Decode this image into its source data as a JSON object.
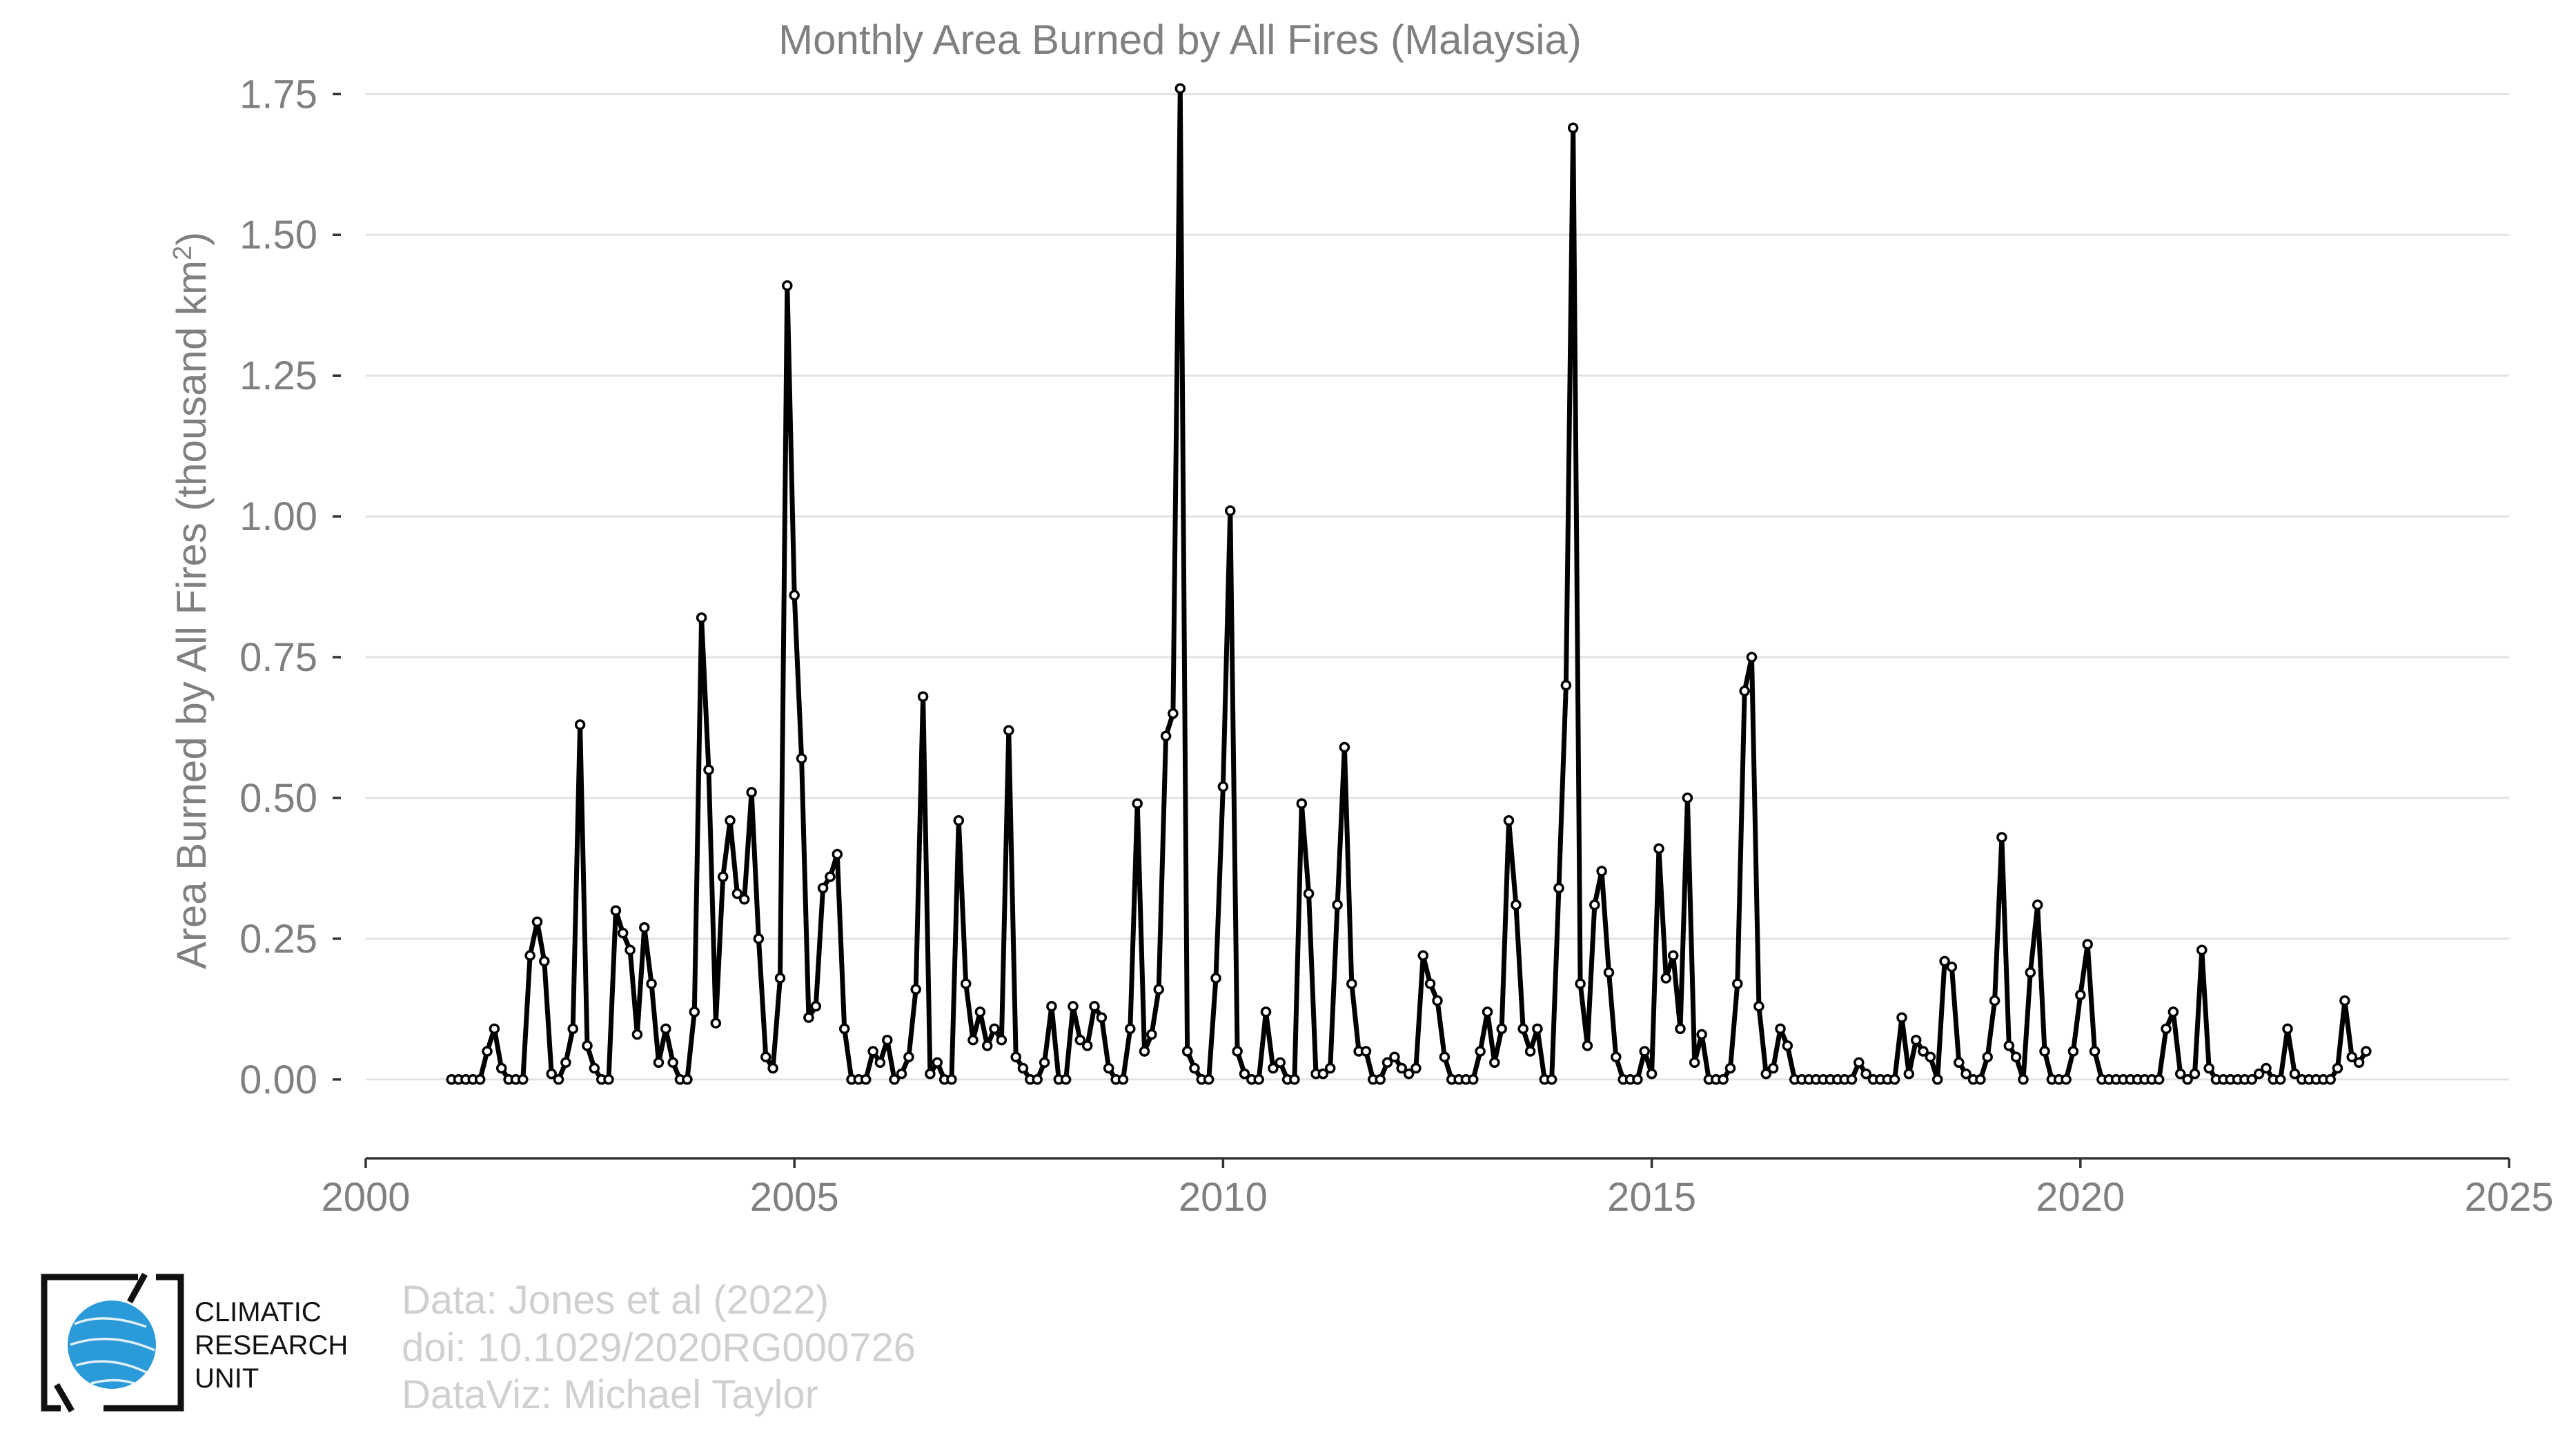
{
  "chart_data": {
    "type": "line",
    "title": "Monthly Area Burned by All Fires (Malaysia)",
    "xlabel": "",
    "ylabel": "Area Burned by All Fires (thousand km",
    "ylabel_sup": "2",
    "ylabel_tail": ")",
    "xlim": [
      2000,
      2025
    ],
    "ylim": [
      -0.14,
      1.77
    ],
    "x_ticks": [
      2000,
      2005,
      2010,
      2015,
      2020,
      2025
    ],
    "x_tick_labels": [
      "2000",
      "2005",
      "2010",
      "2015",
      "2020",
      "2025"
    ],
    "y_ticks": [
      0,
      0.25,
      0.5,
      0.75,
      1.0,
      1.25,
      1.5,
      1.75
    ],
    "y_tick_labels": [
      "0.00",
      "0.25",
      "0.50",
      "0.75",
      "1.00",
      "1.25",
      "1.50",
      "1.75"
    ],
    "grid": "horizontal",
    "start_year": 2001,
    "frequency": "monthly",
    "series": [
      {
        "color": "#000000",
        "values": [
          0,
          0,
          0,
          0,
          0,
          0.05,
          0.09,
          0.02,
          0,
          0,
          0,
          0.22,
          0.28,
          0.21,
          0.01,
          0,
          0.03,
          0.09,
          0.63,
          0.06,
          0.02,
          0,
          0,
          0.3,
          0.26,
          0.23,
          0.08,
          0.27,
          0.17,
          0.03,
          0.09,
          0.03,
          0,
          0,
          0.12,
          0.82,
          0.55,
          0.1,
          0.36,
          0.46,
          0.33,
          0.32,
          0.51,
          0.25,
          0.04,
          0.02,
          0.18,
          1.41,
          0.86,
          0.57,
          0.11,
          0.13,
          0.34,
          0.36,
          0.4,
          0.09,
          0,
          0,
          0,
          0.05,
          0.03,
          0.07,
          0,
          0.01,
          0.04,
          0.16,
          0.68,
          0.01,
          0.03,
          0,
          0,
          0.46,
          0.17,
          0.07,
          0.12,
          0.06,
          0.09,
          0.07,
          0.62,
          0.04,
          0.02,
          0,
          0,
          0.03,
          0.13,
          0,
          0,
          0.13,
          0.07,
          0.06,
          0.13,
          0.11,
          0.02,
          0,
          0,
          0.09,
          0.49,
          0.05,
          0.08,
          0.16,
          0.61,
          0.65,
          1.76,
          0.05,
          0.02,
          0,
          0,
          0.18,
          0.52,
          1.01,
          0.05,
          0.01,
          0,
          0,
          0.12,
          0.02,
          0.03,
          0,
          0,
          0.49,
          0.33,
          0.01,
          0.01,
          0.02,
          0.31,
          0.59,
          0.17,
          0.05,
          0.05,
          0,
          0,
          0.03,
          0.04,
          0.02,
          0.01,
          0.02,
          0.22,
          0.17,
          0.14,
          0.04,
          0,
          0,
          0,
          0,
          0.05,
          0.12,
          0.03,
          0.09,
          0.46,
          0.31,
          0.09,
          0.05,
          0.09,
          0,
          0,
          0.34,
          0.7,
          1.69,
          0.17,
          0.06,
          0.31,
          0.37,
          0.19,
          0.04,
          0,
          0,
          0,
          0.05,
          0.01,
          0.41,
          0.18,
          0.22,
          0.09,
          0.5,
          0.03,
          0.08,
          0,
          0,
          0,
          0.02,
          0.17,
          0.69,
          0.75,
          0.13,
          0.01,
          0.02,
          0.09,
          0.06,
          0,
          0,
          0,
          0,
          0,
          0,
          0,
          0,
          0,
          0.03,
          0.01,
          0,
          0,
          0,
          0,
          0.11,
          0.01,
          0.07,
          0.05,
          0.04,
          0,
          0.21,
          0.2,
          0.03,
          0.01,
          0,
          0,
          0.04,
          0.14,
          0.43,
          0.06,
          0.04,
          0,
          0.19,
          0.31,
          0.05,
          0,
          0,
          0,
          0.05,
          0.15,
          0.24,
          0.05,
          0,
          0,
          0,
          0,
          0,
          0,
          0,
          0,
          0,
          0.09,
          0.12,
          0.01,
          0,
          0.01,
          0.23,
          0.02,
          0,
          0,
          0,
          0,
          0,
          0,
          0.01,
          0.02,
          0,
          0,
          0.09,
          0.01,
          0,
          0,
          0,
          0,
          0,
          0.02,
          0.14,
          0.04,
          0.03,
          0.05
        ]
      }
    ]
  },
  "credits": {
    "line1": "Data: Jones et al (2022)",
    "line2": "doi: 10.1029/2020RG000726",
    "line3": "DataViz: Michael Taylor"
  },
  "logo": {
    "line1": "CLIMATIC",
    "line2": "RESEARCH",
    "line3": "UNIT",
    "globe_color": "#2a9ad8"
  }
}
